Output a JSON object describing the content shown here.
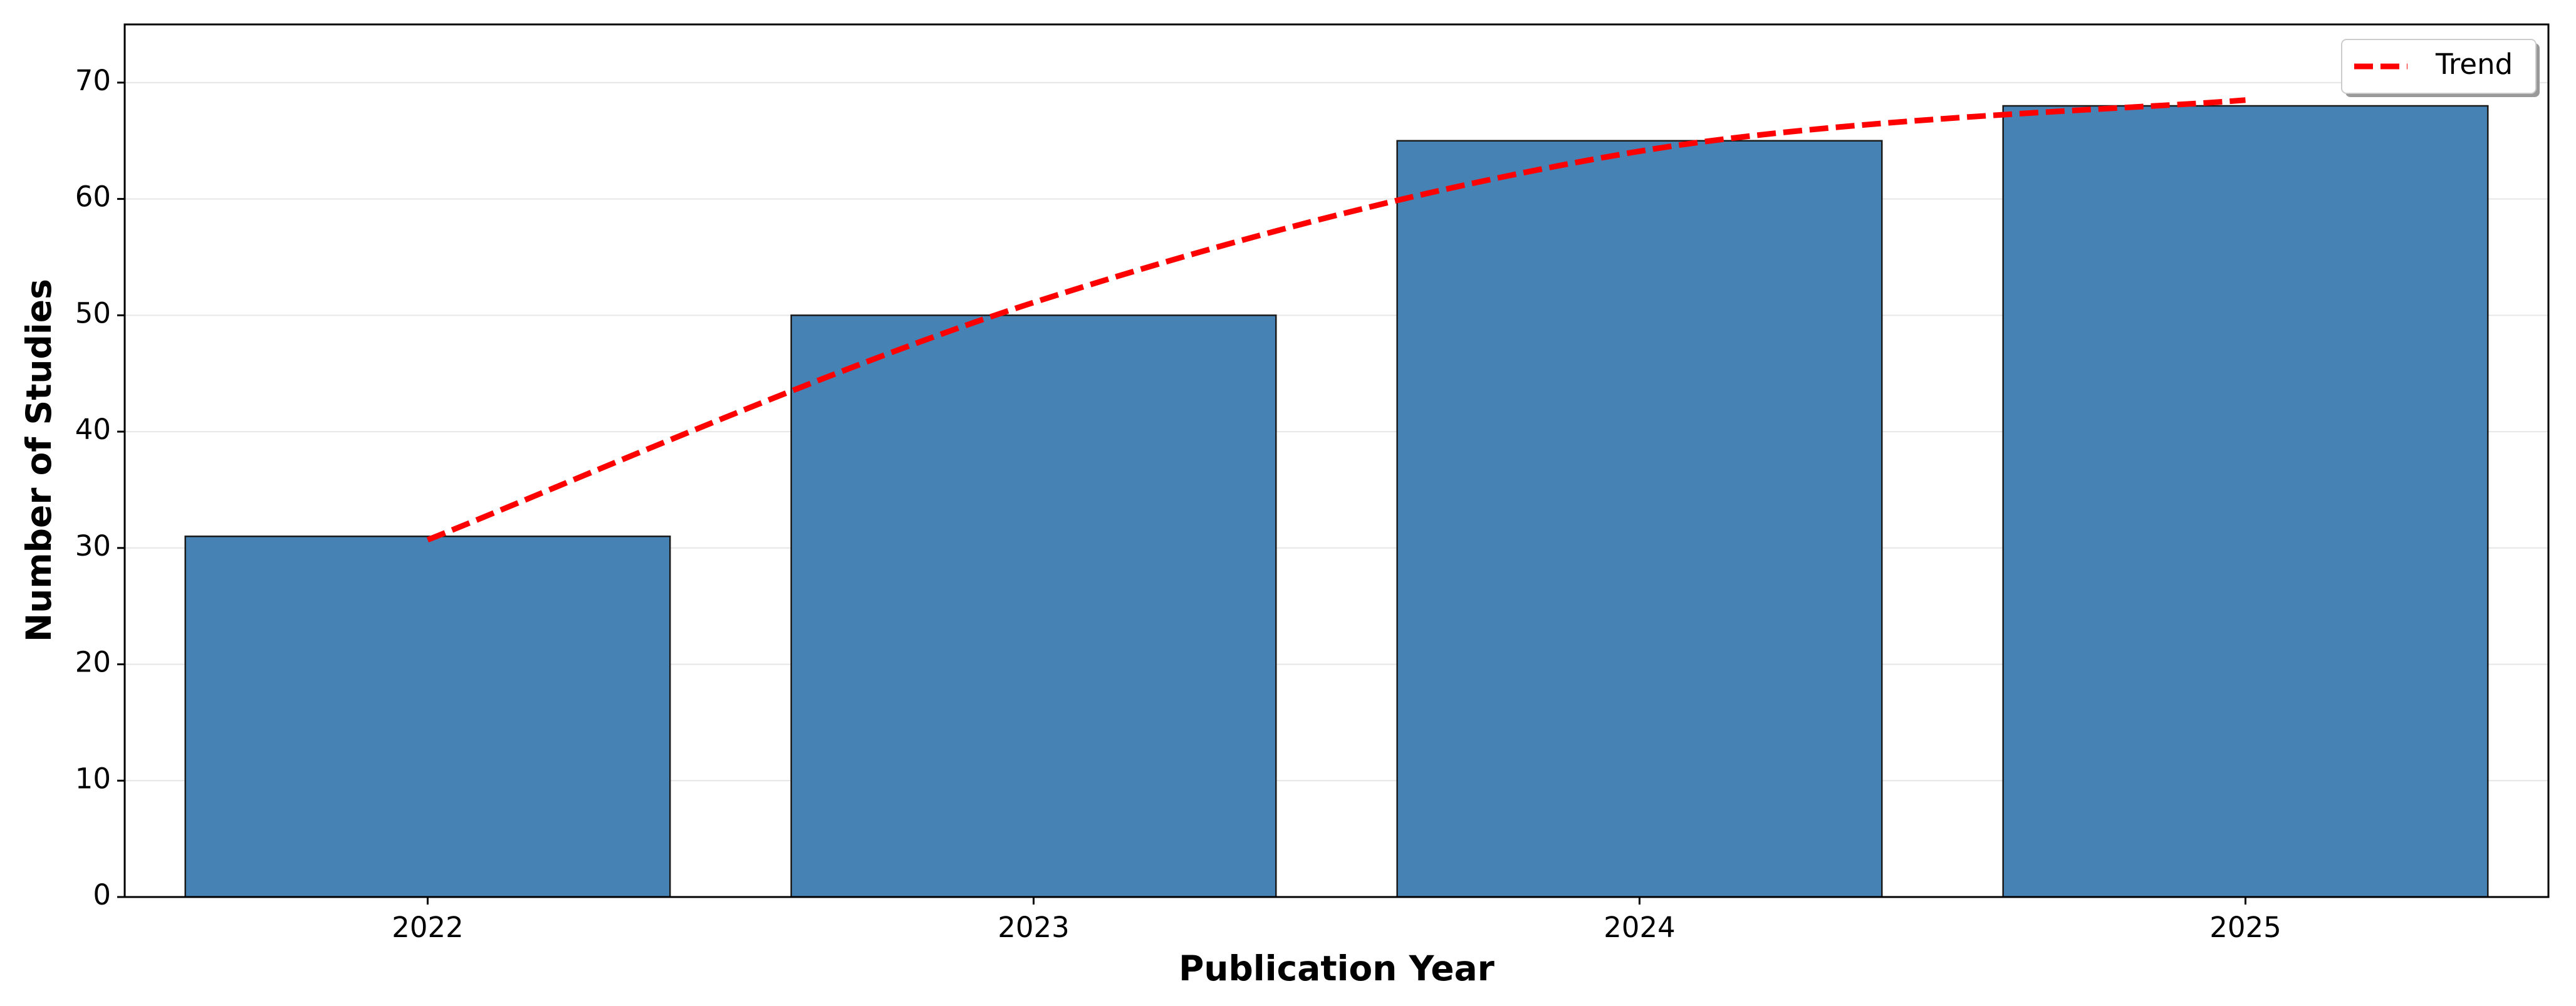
{
  "chart_data": {
    "type": "bar",
    "xlabel": "Publication Year",
    "ylabel": "Number of Studies",
    "categories": [
      "2022",
      "2023",
      "2024",
      "2025"
    ],
    "values": [
      31,
      50,
      65,
      68
    ],
    "color": "#4682b4",
    "edgecolor": "#1a1a1a",
    "trend": {
      "name": "Trend",
      "color": "#ff0000",
      "dashed": true,
      "values": [
        30.7,
        51.1,
        64.1,
        68.5
      ]
    },
    "ylim": [
      0,
      75
    ],
    "yticks": [
      0,
      10,
      20,
      30,
      40,
      50,
      60,
      70
    ],
    "grid": true,
    "legend": "upper right"
  }
}
